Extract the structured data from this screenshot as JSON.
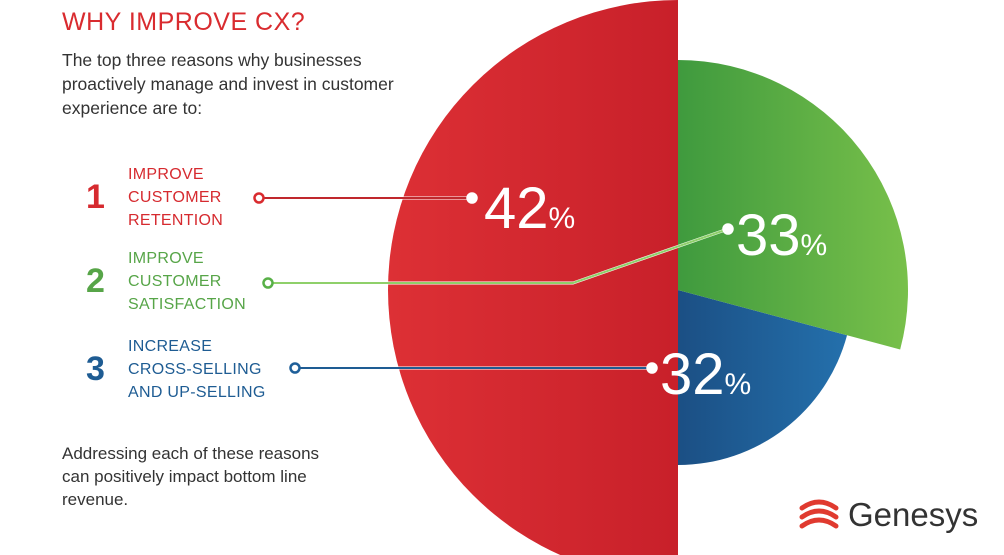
{
  "title": "WHY IMPROVE CX?",
  "intro": "The top three reasons why businesses proactively manage and invest in customer experience are to:",
  "reasons": [
    {
      "num": "1",
      "label": "IMPROVE\nCUSTOMER\nRETENTION",
      "color": "#d62a2f"
    },
    {
      "num": "2",
      "label": "IMPROVE\nCUSTOMER\nSATISFACTION",
      "color": "#57a548"
    },
    {
      "num": "3",
      "label": "INCREASE\nCROSS-SELLING\nAND UP-SELLING",
      "color": "#1e5c93"
    }
  ],
  "outro": "Addressing each of these reasons can positively impact bottom line revenue.",
  "logo": {
    "word": "Genesys",
    "icon": "genesys-logo-icon"
  },
  "chart_data": {
    "type": "pie",
    "title": "",
    "percent_symbol": "%",
    "series": [
      {
        "category": "IMPROVE CUSTOMER RETENTION",
        "value": 42,
        "label": "42",
        "color": "#d92b2f"
      },
      {
        "category": "IMPROVE CUSTOMER SATISFACTION",
        "value": 33,
        "label": "33",
        "color": "#58b047"
      },
      {
        "category": "INCREASE CROSS-SELLING AND UP-SELLING",
        "value": 32,
        "label": "32",
        "color": "#1f5f99"
      }
    ]
  }
}
